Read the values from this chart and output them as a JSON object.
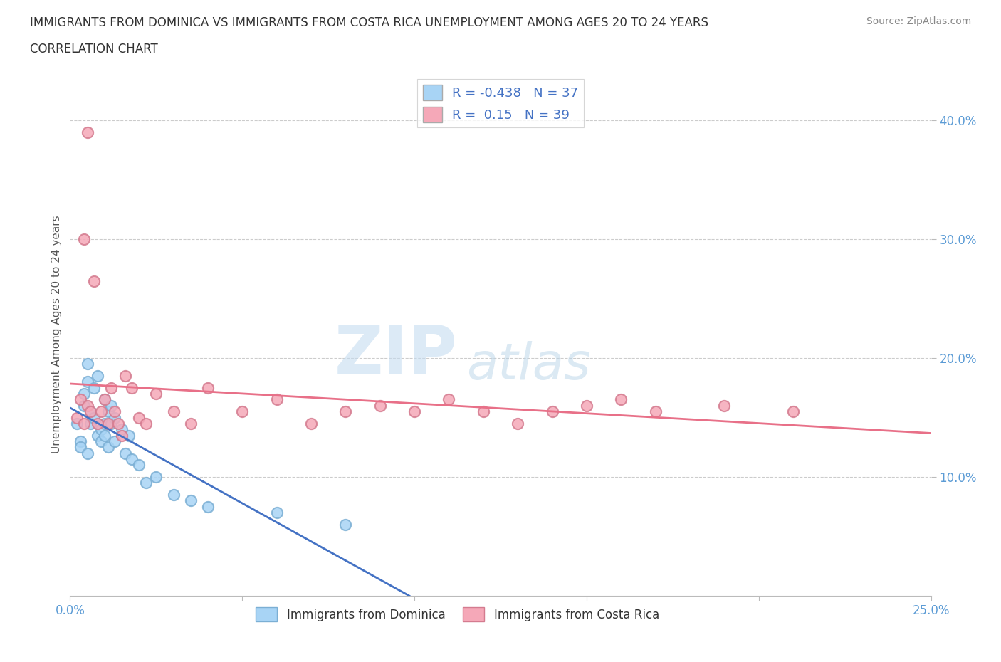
{
  "title_line1": "IMMIGRANTS FROM DOMINICA VS IMMIGRANTS FROM COSTA RICA UNEMPLOYMENT AMONG AGES 20 TO 24 YEARS",
  "title_line2": "CORRELATION CHART",
  "source_text": "Source: ZipAtlas.com",
  "ylabel": "Unemployment Among Ages 20 to 24 years",
  "xlim": [
    0.0,
    0.25
  ],
  "ylim": [
    0.0,
    0.44
  ],
  "ytick_values": [
    0.1,
    0.2,
    0.3,
    0.4
  ],
  "ytick_labels": [
    "10.0%",
    "20.0%",
    "30.0%",
    "40.0%"
  ],
  "xtick_values": [
    0.0,
    0.05,
    0.1,
    0.15,
    0.2,
    0.25
  ],
  "xtick_labels": [
    "0.0%",
    "",
    "",
    "",
    "",
    "25.0%"
  ],
  "dominica_color_fill": "#A8D4F5",
  "dominica_color_edge": "#7BAFD4",
  "costa_rica_color_fill": "#F5A8B8",
  "costa_rica_color_edge": "#D47B8F",
  "dominica_line_color": "#4472C4",
  "costa_rica_line_color": "#E87088",
  "dominica_R": -0.438,
  "dominica_N": 37,
  "costa_rica_R": 0.15,
  "costa_rica_N": 39,
  "watermark_zip": "ZIP",
  "watermark_atlas": "atlas",
  "legend_label_dominica": "Immigrants from Dominica",
  "legend_label_costa_rica": "Immigrants from Costa Rica",
  "dominica_x": [
    0.002,
    0.003,
    0.003,
    0.004,
    0.004,
    0.005,
    0.005,
    0.005,
    0.006,
    0.006,
    0.007,
    0.007,
    0.008,
    0.008,
    0.009,
    0.009,
    0.01,
    0.01,
    0.01,
    0.011,
    0.011,
    0.012,
    0.012,
    0.013,
    0.013,
    0.015,
    0.016,
    0.017,
    0.018,
    0.02,
    0.022,
    0.025,
    0.03,
    0.035,
    0.04,
    0.06,
    0.08
  ],
  "dominica_y": [
    0.145,
    0.13,
    0.125,
    0.17,
    0.16,
    0.195,
    0.18,
    0.12,
    0.155,
    0.145,
    0.175,
    0.15,
    0.135,
    0.185,
    0.13,
    0.14,
    0.165,
    0.145,
    0.135,
    0.155,
    0.125,
    0.145,
    0.16,
    0.13,
    0.15,
    0.14,
    0.12,
    0.135,
    0.115,
    0.11,
    0.095,
    0.1,
    0.085,
    0.08,
    0.075,
    0.07,
    0.06
  ],
  "costa_rica_x": [
    0.002,
    0.003,
    0.004,
    0.004,
    0.005,
    0.005,
    0.006,
    0.007,
    0.008,
    0.009,
    0.01,
    0.011,
    0.012,
    0.013,
    0.014,
    0.015,
    0.016,
    0.018,
    0.02,
    0.022,
    0.025,
    0.03,
    0.035,
    0.04,
    0.05,
    0.06,
    0.07,
    0.08,
    0.09,
    0.1,
    0.11,
    0.12,
    0.13,
    0.14,
    0.15,
    0.16,
    0.17,
    0.19,
    0.21
  ],
  "costa_rica_y": [
    0.15,
    0.165,
    0.145,
    0.3,
    0.16,
    0.39,
    0.155,
    0.265,
    0.145,
    0.155,
    0.165,
    0.145,
    0.175,
    0.155,
    0.145,
    0.135,
    0.185,
    0.175,
    0.15,
    0.145,
    0.17,
    0.155,
    0.145,
    0.175,
    0.155,
    0.165,
    0.145,
    0.155,
    0.16,
    0.155,
    0.165,
    0.155,
    0.145,
    0.155,
    0.16,
    0.165,
    0.155,
    0.16,
    0.155
  ]
}
